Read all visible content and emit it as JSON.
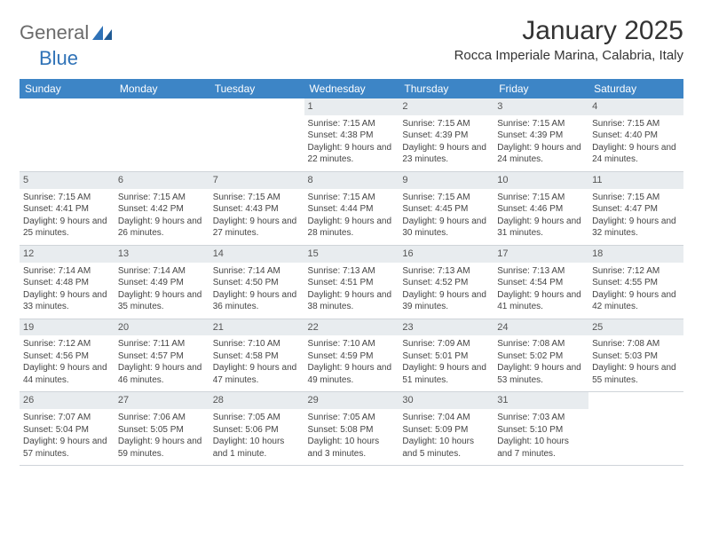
{
  "logo": {
    "part1": "General",
    "part2": "Blue"
  },
  "title": "January 2025",
  "location": "Rocca Imperiale Marina, Calabria, Italy",
  "colors": {
    "header_bg": "#3d85c6",
    "header_text": "#ffffff",
    "daynum_bg": "#e8ecef",
    "body_text": "#444444",
    "logo_gray": "#6b6b6b",
    "logo_blue": "#2f72b7",
    "border": "#cfd4d9"
  },
  "dayHeaders": [
    "Sunday",
    "Monday",
    "Tuesday",
    "Wednesday",
    "Thursday",
    "Friday",
    "Saturday"
  ],
  "weeks": [
    [
      {
        "empty": true
      },
      {
        "empty": true
      },
      {
        "empty": true
      },
      {
        "n": "1",
        "sunrise": "7:15 AM",
        "sunset": "4:38 PM",
        "daylight": "9 hours and 22 minutes."
      },
      {
        "n": "2",
        "sunrise": "7:15 AM",
        "sunset": "4:39 PM",
        "daylight": "9 hours and 23 minutes."
      },
      {
        "n": "3",
        "sunrise": "7:15 AM",
        "sunset": "4:39 PM",
        "daylight": "9 hours and 24 minutes."
      },
      {
        "n": "4",
        "sunrise": "7:15 AM",
        "sunset": "4:40 PM",
        "daylight": "9 hours and 24 minutes."
      }
    ],
    [
      {
        "n": "5",
        "sunrise": "7:15 AM",
        "sunset": "4:41 PM",
        "daylight": "9 hours and 25 minutes."
      },
      {
        "n": "6",
        "sunrise": "7:15 AM",
        "sunset": "4:42 PM",
        "daylight": "9 hours and 26 minutes."
      },
      {
        "n": "7",
        "sunrise": "7:15 AM",
        "sunset": "4:43 PM",
        "daylight": "9 hours and 27 minutes."
      },
      {
        "n": "8",
        "sunrise": "7:15 AM",
        "sunset": "4:44 PM",
        "daylight": "9 hours and 28 minutes."
      },
      {
        "n": "9",
        "sunrise": "7:15 AM",
        "sunset": "4:45 PM",
        "daylight": "9 hours and 30 minutes."
      },
      {
        "n": "10",
        "sunrise": "7:15 AM",
        "sunset": "4:46 PM",
        "daylight": "9 hours and 31 minutes."
      },
      {
        "n": "11",
        "sunrise": "7:15 AM",
        "sunset": "4:47 PM",
        "daylight": "9 hours and 32 minutes."
      }
    ],
    [
      {
        "n": "12",
        "sunrise": "7:14 AM",
        "sunset": "4:48 PM",
        "daylight": "9 hours and 33 minutes."
      },
      {
        "n": "13",
        "sunrise": "7:14 AM",
        "sunset": "4:49 PM",
        "daylight": "9 hours and 35 minutes."
      },
      {
        "n": "14",
        "sunrise": "7:14 AM",
        "sunset": "4:50 PM",
        "daylight": "9 hours and 36 minutes."
      },
      {
        "n": "15",
        "sunrise": "7:13 AM",
        "sunset": "4:51 PM",
        "daylight": "9 hours and 38 minutes."
      },
      {
        "n": "16",
        "sunrise": "7:13 AM",
        "sunset": "4:52 PM",
        "daylight": "9 hours and 39 minutes."
      },
      {
        "n": "17",
        "sunrise": "7:13 AM",
        "sunset": "4:54 PM",
        "daylight": "9 hours and 41 minutes."
      },
      {
        "n": "18",
        "sunrise": "7:12 AM",
        "sunset": "4:55 PM",
        "daylight": "9 hours and 42 minutes."
      }
    ],
    [
      {
        "n": "19",
        "sunrise": "7:12 AM",
        "sunset": "4:56 PM",
        "daylight": "9 hours and 44 minutes."
      },
      {
        "n": "20",
        "sunrise": "7:11 AM",
        "sunset": "4:57 PM",
        "daylight": "9 hours and 46 minutes."
      },
      {
        "n": "21",
        "sunrise": "7:10 AM",
        "sunset": "4:58 PM",
        "daylight": "9 hours and 47 minutes."
      },
      {
        "n": "22",
        "sunrise": "7:10 AM",
        "sunset": "4:59 PM",
        "daylight": "9 hours and 49 minutes."
      },
      {
        "n": "23",
        "sunrise": "7:09 AM",
        "sunset": "5:01 PM",
        "daylight": "9 hours and 51 minutes."
      },
      {
        "n": "24",
        "sunrise": "7:08 AM",
        "sunset": "5:02 PM",
        "daylight": "9 hours and 53 minutes."
      },
      {
        "n": "25",
        "sunrise": "7:08 AM",
        "sunset": "5:03 PM",
        "daylight": "9 hours and 55 minutes."
      }
    ],
    [
      {
        "n": "26",
        "sunrise": "7:07 AM",
        "sunset": "5:04 PM",
        "daylight": "9 hours and 57 minutes."
      },
      {
        "n": "27",
        "sunrise": "7:06 AM",
        "sunset": "5:05 PM",
        "daylight": "9 hours and 59 minutes."
      },
      {
        "n": "28",
        "sunrise": "7:05 AM",
        "sunset": "5:06 PM",
        "daylight": "10 hours and 1 minute."
      },
      {
        "n": "29",
        "sunrise": "7:05 AM",
        "sunset": "5:08 PM",
        "daylight": "10 hours and 3 minutes."
      },
      {
        "n": "30",
        "sunrise": "7:04 AM",
        "sunset": "5:09 PM",
        "daylight": "10 hours and 5 minutes."
      },
      {
        "n": "31",
        "sunrise": "7:03 AM",
        "sunset": "5:10 PM",
        "daylight": "10 hours and 7 minutes."
      },
      {
        "empty": true
      }
    ]
  ]
}
